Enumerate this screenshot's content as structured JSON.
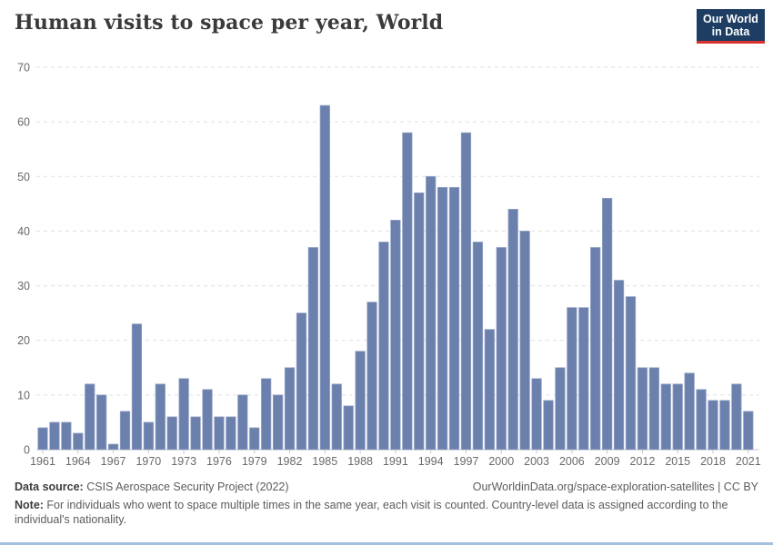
{
  "header": {
    "title": "Human visits to space per year, World",
    "logo": {
      "line1": "Our World",
      "line2": "in Data"
    }
  },
  "footer": {
    "source_label": "Data source:",
    "source_text": " CSIS Aerospace Security Project (2022)",
    "citation": "OurWorldinData.org/space-exploration-satellites | CC BY",
    "note_label": "Note:",
    "note_text": " For individuals who went to space multiple times in the same year, each visit is counted. Country-level data is assigned according to the individual's nationality."
  },
  "colors": {
    "bar": "#6b80ad",
    "bar_edge": "#93a3c4",
    "grid": "#e0e0e0",
    "baseline": "#c9c9c9",
    "tick": "#c9c9c9",
    "axis_text": "#696969",
    "title_text": "#3b3b3b",
    "logo_bg": "#1d3d63",
    "logo_red": "#d8342b",
    "bottom_strip": "#a5bfdf"
  },
  "chart_data": {
    "type": "bar",
    "title": "Human visits to space per year, World",
    "xlabel": "",
    "ylabel": "",
    "legend": "none",
    "grid": "dashed-horizontal",
    "ylim": [
      0,
      70
    ],
    "yticks": [
      0,
      10,
      20,
      30,
      40,
      50,
      60,
      70
    ],
    "xtick_years": [
      1961,
      1964,
      1967,
      1970,
      1973,
      1976,
      1979,
      1982,
      1985,
      1988,
      1991,
      1994,
      1997,
      2000,
      2003,
      2006,
      2009,
      2012,
      2015,
      2018,
      2021
    ],
    "x": [
      1961,
      1962,
      1963,
      1964,
      1965,
      1966,
      1967,
      1968,
      1969,
      1970,
      1971,
      1972,
      1973,
      1974,
      1975,
      1976,
      1977,
      1978,
      1979,
      1980,
      1981,
      1982,
      1983,
      1984,
      1985,
      1986,
      1987,
      1988,
      1989,
      1990,
      1991,
      1992,
      1993,
      1994,
      1995,
      1996,
      1997,
      1998,
      1999,
      2000,
      2001,
      2002,
      2003,
      2004,
      2005,
      2006,
      2007,
      2008,
      2009,
      2010,
      2011,
      2012,
      2013,
      2014,
      2015,
      2016,
      2017,
      2018,
      2019,
      2020,
      2021
    ],
    "values": [
      4,
      5,
      5,
      3,
      12,
      10,
      1,
      7,
      23,
      5,
      12,
      6,
      13,
      6,
      11,
      6,
      6,
      10,
      4,
      13,
      10,
      15,
      25,
      37,
      63,
      12,
      8,
      18,
      27,
      38,
      42,
      58,
      47,
      50,
      48,
      48,
      58,
      38,
      22,
      37,
      44,
      40,
      13,
      9,
      15,
      26,
      26,
      37,
      46,
      31,
      28,
      15,
      15,
      12,
      12,
      14,
      11,
      9,
      9,
      12,
      7
    ]
  }
}
